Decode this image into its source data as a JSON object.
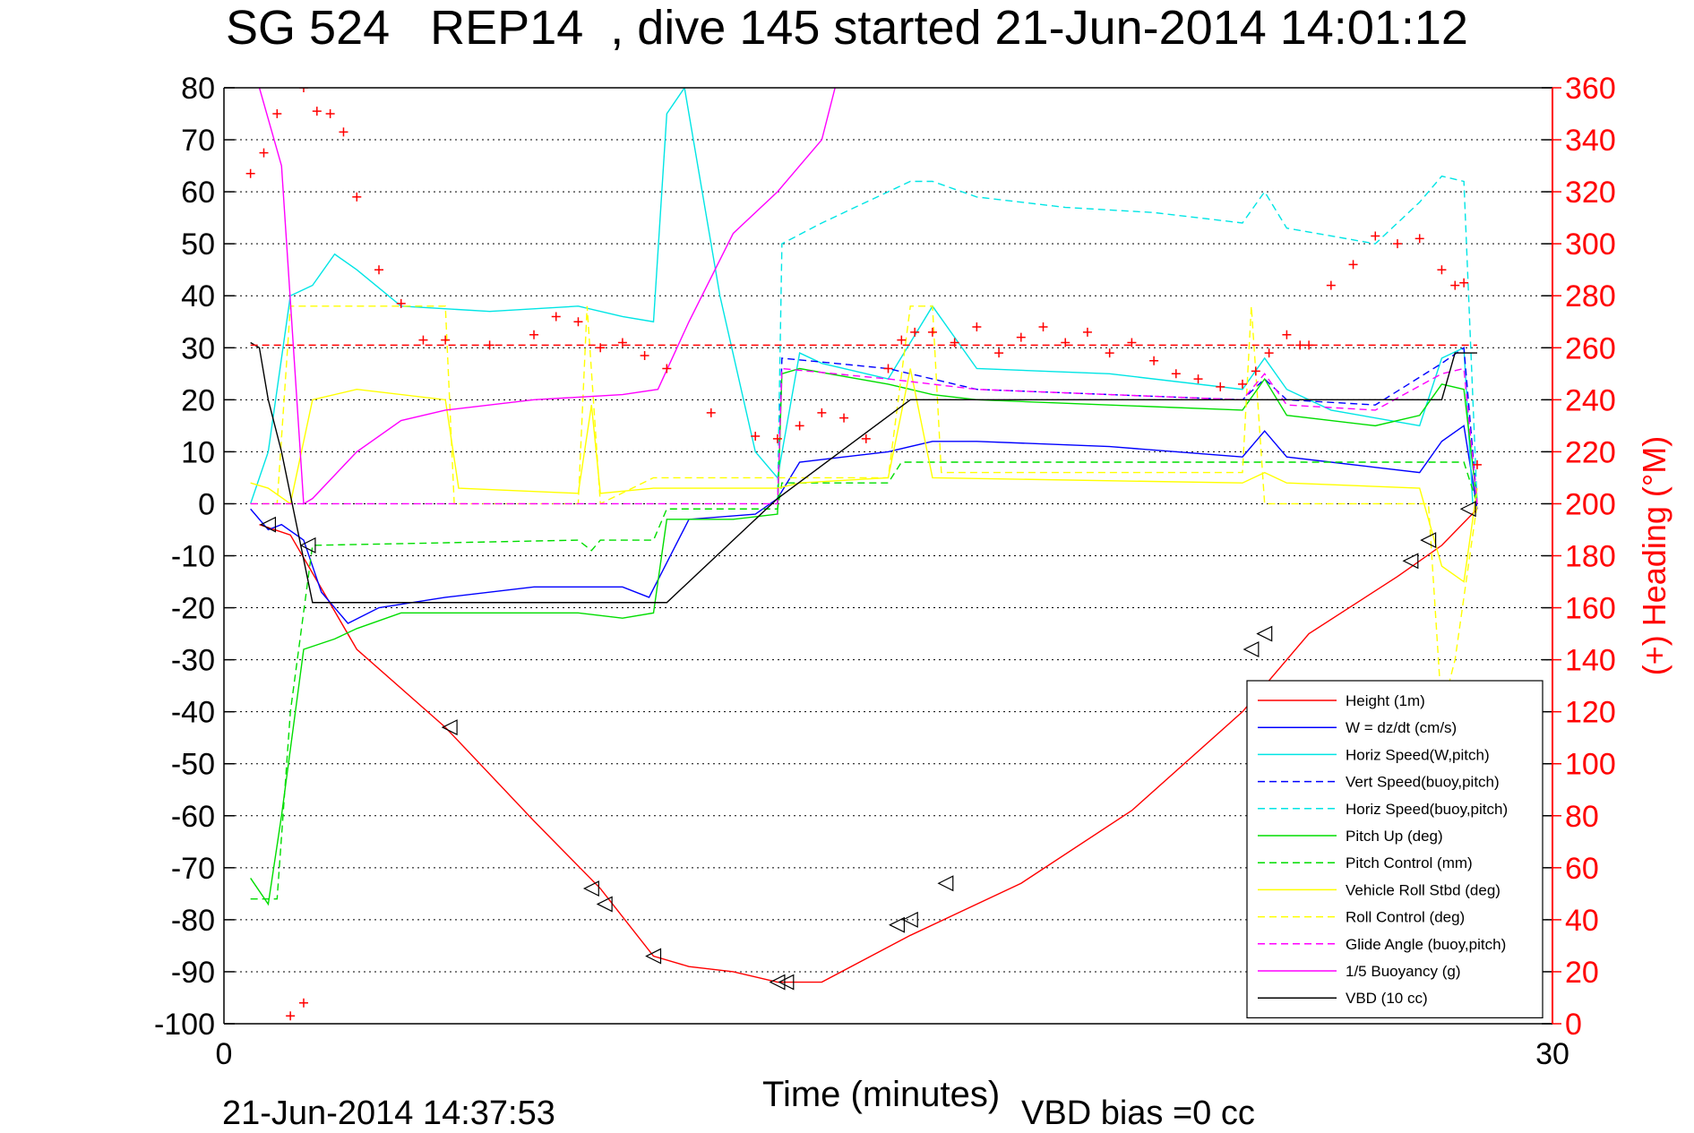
{
  "header": {
    "title": "SG 524   REP14  , dive 145 started 21-Jun-2014 14:01:12",
    "footer_left": "21-Jun-2014 14:37:53",
    "footer_right": "VBD bias =0 cc"
  },
  "chart_data": {
    "type": "line",
    "title": "SG 524   REP14  , dive 145 started 21-Jun-2014 14:01:12",
    "xlabel": "Time (minutes)",
    "ylabel": "",
    "y2label": "(+) Heading (°M)",
    "xlim": [
      0,
      30
    ],
    "ylim": [
      -100,
      80
    ],
    "y2lim": [
      0,
      360
    ],
    "x_ticks": [
      "0",
      "30"
    ],
    "y_ticks": [
      "80",
      "70",
      "60",
      "50",
      "40",
      "30",
      "20",
      "10",
      "0",
      "-10",
      "-20",
      "-30",
      "-40",
      "-50",
      "-60",
      "-70",
      "-80",
      "-90",
      "-100"
    ],
    "y2_ticks": [
      "360",
      "340",
      "320",
      "300",
      "280",
      "260",
      "240",
      "220",
      "200",
      "180",
      "160",
      "140",
      "120",
      "100",
      "80",
      "60",
      "40",
      "20",
      "0"
    ],
    "grid": true,
    "legend_position": "bottom-right",
    "colors": {
      "axis": "#000000",
      "heading": "#ff0000"
    },
    "series": [
      {
        "name": "Height (1m)",
        "color": "#ff0000",
        "dash": "solid",
        "axis": "left",
        "x": [
          0.8,
          1.5,
          3.0,
          5.0,
          7.0,
          8.5,
          9.7,
          10.5,
          11.5,
          12.5,
          13.5,
          15.5,
          18.0,
          20.5,
          23.0,
          24.5,
          26.5,
          27.5,
          28.3
        ],
        "y": [
          -4,
          -6,
          -28,
          -43,
          -61,
          -74,
          -87,
          -89,
          -90,
          -92,
          -92,
          -83,
          -73,
          -59,
          -40,
          -25,
          -14,
          -8,
          -1
        ]
      },
      {
        "name": "W = dz/dt (cm/s)",
        "color": "#0000ff",
        "dash": "solid",
        "axis": "left",
        "x": [
          0.6,
          1.0,
          1.3,
          1.8,
          2.2,
          2.8,
          3.5,
          5,
          7,
          9,
          9.6,
          10.5,
          12,
          12.5,
          13,
          14,
          15,
          16,
          17,
          20,
          23,
          23.5,
          24,
          25,
          26,
          27,
          27.5,
          28,
          28.3
        ],
        "y": [
          -1,
          -5,
          -4,
          -7,
          -17,
          -23,
          -20,
          -18,
          -16,
          -16,
          -18,
          -3,
          -2,
          1,
          8,
          9,
          10,
          12,
          12,
          11,
          9,
          14,
          9,
          8,
          7,
          6,
          12,
          15,
          -1
        ]
      },
      {
        "name": "Horiz Speed(W,pitch)",
        "color": "#00e5e5",
        "dash": "solid",
        "axis": "left",
        "x": [
          0.6,
          1.0,
          1.5,
          2.0,
          2.5,
          3.0,
          4,
          6,
          8,
          9,
          9.7,
          10.0,
          10.4,
          10.8,
          11.2,
          12.0,
          12.5,
          13,
          13.5,
          15,
          16,
          17,
          20,
          23,
          23.5,
          24,
          25,
          27,
          27.5,
          28,
          28.2
        ],
        "y": [
          0,
          10,
          40,
          42,
          48,
          45,
          38,
          37,
          38,
          36,
          35,
          75,
          80,
          60,
          40,
          10,
          5,
          29,
          27,
          24,
          38,
          26,
          25,
          22,
          28,
          22,
          18,
          15,
          28,
          30,
          0
        ]
      },
      {
        "name": "Vert Speed(buoy,pitch)",
        "color": "#0000ff",
        "dash": "dashed",
        "axis": "left",
        "x": [
          12.5,
          12.6,
          15,
          17,
          20,
          23,
          23.5,
          24,
          26,
          27.5,
          28,
          28.3
        ],
        "y": [
          0,
          28,
          26,
          22,
          21,
          20,
          24,
          20,
          19,
          27,
          30,
          0
        ]
      },
      {
        "name": "Horiz Speed(buoy,pitch)",
        "color": "#00e5e5",
        "dash": "dashed",
        "axis": "left",
        "x": [
          12.5,
          12.6,
          13.5,
          15,
          15.5,
          16,
          17,
          19,
          21,
          23,
          23.5,
          24,
          26,
          27,
          27.5,
          28,
          28.3
        ],
        "y": [
          0,
          50,
          54,
          60,
          62,
          62,
          59,
          57,
          56,
          54,
          60,
          53,
          50,
          58,
          63,
          62,
          0
        ]
      },
      {
        "name": "Pitch Up (deg)",
        "color": "#00dd00",
        "dash": "solid",
        "axis": "left",
        "x": [
          0.6,
          1.0,
          1.3,
          1.8,
          2.5,
          3.0,
          4,
          6,
          8,
          9,
          9.7,
          10.0,
          11.5,
          12.5,
          12.6,
          13,
          15,
          16,
          17,
          20,
          23,
          23.5,
          24,
          26,
          27,
          27.5,
          28,
          28.3
        ],
        "y": [
          -72,
          -77,
          -60,
          -28,
          -26,
          -24,
          -21,
          -21,
          -21,
          -22,
          -21,
          -3,
          -3,
          -2,
          25,
          26,
          23,
          21,
          20,
          19,
          18,
          24,
          17,
          15,
          17,
          23,
          22,
          0
        ]
      },
      {
        "name": "Pitch Control (mm)",
        "color": "#00dd00",
        "dash": "dashed",
        "axis": "left",
        "x": [
          0.6,
          1.2,
          1.5,
          2.0,
          8.0,
          8.3,
          8.5,
          9.7,
          10.0,
          12.5,
          12.6,
          15,
          15.3,
          23,
          23.3,
          27.5,
          28,
          28.3
        ],
        "y": [
          -76,
          -76,
          -40,
          -8,
          -7,
          -9,
          -7,
          -7,
          -1,
          -1,
          4,
          4,
          8,
          8,
          8,
          8,
          8,
          0
        ]
      },
      {
        "name": "Vehicle Roll Stbd (deg)",
        "color": "#ffff00",
        "dash": "solid",
        "axis": "left",
        "x": [
          0.6,
          1.0,
          1.5,
          2.0,
          3.0,
          5.0,
          5.3,
          8.0,
          8.3,
          8.5,
          9.7,
          12.5,
          13,
          15,
          15.5,
          16,
          23,
          23.5,
          24,
          27,
          27.5,
          28.0,
          28.3
        ],
        "y": [
          4,
          3,
          0,
          20,
          22,
          20,
          3,
          2,
          19,
          2,
          3,
          3,
          4,
          5,
          26,
          5,
          4,
          6,
          4,
          3,
          -12,
          -15,
          3
        ]
      },
      {
        "name": "Roll Control (deg)",
        "color": "#ffff00",
        "dash": "dashed",
        "axis": "left",
        "x": [
          0.6,
          1.2,
          1.5,
          5.0,
          5.2,
          8.0,
          8.2,
          8.5,
          9.7,
          15.0,
          15.5,
          16.0,
          16.2,
          23.0,
          23.2,
          23.5,
          27.2,
          27.5,
          27.8,
          28.3
        ],
        "y": [
          0,
          0,
          38,
          38,
          0,
          0,
          38,
          0,
          5,
          5,
          38,
          38,
          6,
          6,
          38,
          0,
          0,
          -40,
          -30,
          0
        ]
      },
      {
        "name": "Glide Angle (buoy,pitch)",
        "color": "#ff00ff",
        "dash": "dashed",
        "axis": "left",
        "x": [
          0.6,
          12.5,
          12.6,
          15,
          17,
          20,
          23,
          23.5,
          24,
          26,
          27.5,
          28.0,
          28.3
        ],
        "y": [
          0,
          0,
          26,
          24,
          22,
          21,
          20,
          25,
          19,
          18,
          25,
          26,
          0
        ]
      },
      {
        "name": "1/5 Buoyancy (g)",
        "color": "#ff00ff",
        "dash": "solid",
        "axis": "left",
        "x": [
          0.8,
          1.3,
          1.8,
          2.0,
          3.0,
          4.0,
          5,
          7,
          9,
          9.8,
          10.5,
          11.5,
          12.5,
          12.8,
          13.5,
          13.8
        ],
        "y": [
          80,
          65,
          0,
          1,
          10,
          16,
          18,
          20,
          21,
          22,
          35,
          52,
          60,
          63,
          70,
          80
        ]
      },
      {
        "name": "VBD (10 cc)",
        "color": "#000000",
        "dash": "solid",
        "axis": "left",
        "x": [
          0.6,
          0.8,
          1.0,
          1.3,
          2.0,
          4.0,
          6.0,
          8.0,
          9.8,
          10.0,
          12.5,
          15.5,
          15.8,
          23.0,
          27.5,
          27.8,
          28.3
        ],
        "y": [
          31,
          30,
          20,
          10,
          -19,
          -19,
          -19,
          -19,
          -19,
          -19,
          1,
          20,
          20,
          20,
          20,
          29,
          29
        ]
      },
      {
        "name": "(+) Heading",
        "color": "#ff0000",
        "axis": "right",
        "marker": "+",
        "x": [
          0.6,
          0.9,
          1.2,
          1.5,
          1.8,
          2.1,
          2.4,
          2.7,
          3.0,
          3.5,
          4.0,
          4.5,
          5.0,
          6.0,
          7.0,
          7.5,
          8.0,
          8.5,
          9.0,
          9.5,
          10.0,
          11.0,
          12.0,
          12.5,
          13.0,
          13.5,
          14.0,
          14.5,
          15.0,
          15.3,
          15.6,
          16.0,
          16.5,
          17.0,
          17.5,
          18.0,
          18.5,
          19.0,
          19.5,
          20.0,
          20.5,
          21.0,
          21.5,
          22.0,
          22.5,
          23.0,
          23.3,
          23.6,
          24.0,
          24.3,
          24.5,
          25.0,
          25.5,
          26.0,
          26.5,
          27.0,
          27.5,
          27.8,
          28.0,
          28.3
        ],
        "y": [
          327,
          335,
          350,
          362,
          360,
          351,
          350,
          343,
          318,
          290,
          277,
          263,
          263,
          261,
          265,
          272,
          270,
          260,
          262,
          257,
          252,
          235,
          226,
          225,
          230,
          235,
          233,
          225,
          252,
          263,
          266,
          266,
          262,
          268,
          258,
          264,
          268,
          262,
          266,
          258,
          262,
          255,
          250,
          248,
          245,
          246,
          251,
          258,
          265,
          261,
          261,
          284,
          292,
          303,
          300,
          302,
          290,
          284,
          285,
          215
        ]
      },
      {
        "name": "(+) Heading low",
        "color": "#ff0000",
        "axis": "right",
        "marker": "+",
        "x": [
          1.5,
          1.8
        ],
        "y": [
          3,
          8
        ]
      },
      {
        "name": "Heading reference",
        "color": "#ff0000",
        "dash": "dashed",
        "axis": "right",
        "x": [
          0.6,
          28.3
        ],
        "y": [
          261,
          261
        ]
      }
    ],
    "legend_entries": [
      {
        "label": "Height (1m)",
        "color": "#ff0000",
        "dash": "solid"
      },
      {
        "label": "W = dz/dt (cm/s)",
        "color": "#0000ff",
        "dash": "solid"
      },
      {
        "label": "Horiz Speed(W,pitch)",
        "color": "#00e5e5",
        "dash": "solid"
      },
      {
        "label": "Vert Speed(buoy,pitch)",
        "color": "#0000ff",
        "dash": "dashed"
      },
      {
        "label": "Horiz Speed(buoy,pitch)",
        "color": "#00e5e5",
        "dash": "dashed"
      },
      {
        "label": "Pitch Up (deg)",
        "color": "#00dd00",
        "dash": "solid"
      },
      {
        "label": "Pitch Control (mm)",
        "color": "#00dd00",
        "dash": "dashed"
      },
      {
        "label": "Vehicle Roll Stbd (deg)",
        "color": "#ffff00",
        "dash": "solid"
      },
      {
        "label": "Roll Control (deg)",
        "color": "#ffff00",
        "dash": "dashed"
      },
      {
        "label": "Glide Angle (buoy,pitch)",
        "color": "#ff00ff",
        "dash": "dashed"
      },
      {
        "label": "1/5 Buoyancy (g)",
        "color": "#ff00ff",
        "dash": "solid"
      },
      {
        "label": "VBD (10 cc)",
        "color": "#000000",
        "dash": "solid"
      }
    ],
    "triangle_markers": {
      "x": [
        1.0,
        1.9,
        5.1,
        8.3,
        8.6,
        9.7,
        12.5,
        12.7,
        15.2,
        15.5,
        16.3,
        23.2,
        23.5,
        26.8,
        27.2,
        28.1
      ],
      "y": [
        -4,
        -8,
        -43,
        -74,
        -77,
        -87,
        -92,
        -92,
        -81,
        -80,
        -73,
        -28,
        -25,
        -11,
        -7,
        -1
      ]
    }
  }
}
